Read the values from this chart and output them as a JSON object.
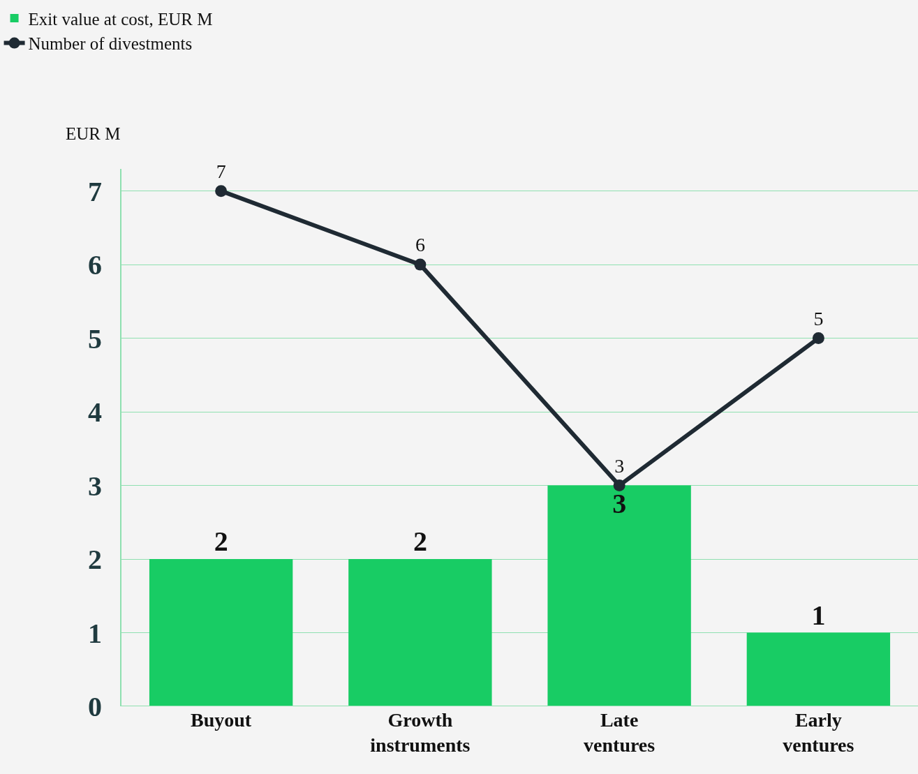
{
  "chart_data": {
    "type": "bar",
    "ylabel": "EUR M",
    "categories": [
      "Buyout",
      "Growth instruments",
      "Late ventures",
      "Early ventures"
    ],
    "series": [
      {
        "name": "Exit value at cost, EUR M",
        "color": "#18cc64",
        "values": [
          2,
          2,
          3,
          1
        ]
      },
      {
        "name": "Number of divestments",
        "type": "line",
        "color": "#1f2a33",
        "values": [
          7,
          6,
          3,
          5
        ],
        "marker": "circle",
        "line_style": "solid"
      }
    ],
    "ylim": [
      0,
      7.3
    ],
    "yticks": [
      0,
      1,
      2,
      3,
      4,
      5,
      6,
      7
    ],
    "grid": "y",
    "legend": "top left",
    "data_labels": true
  }
}
